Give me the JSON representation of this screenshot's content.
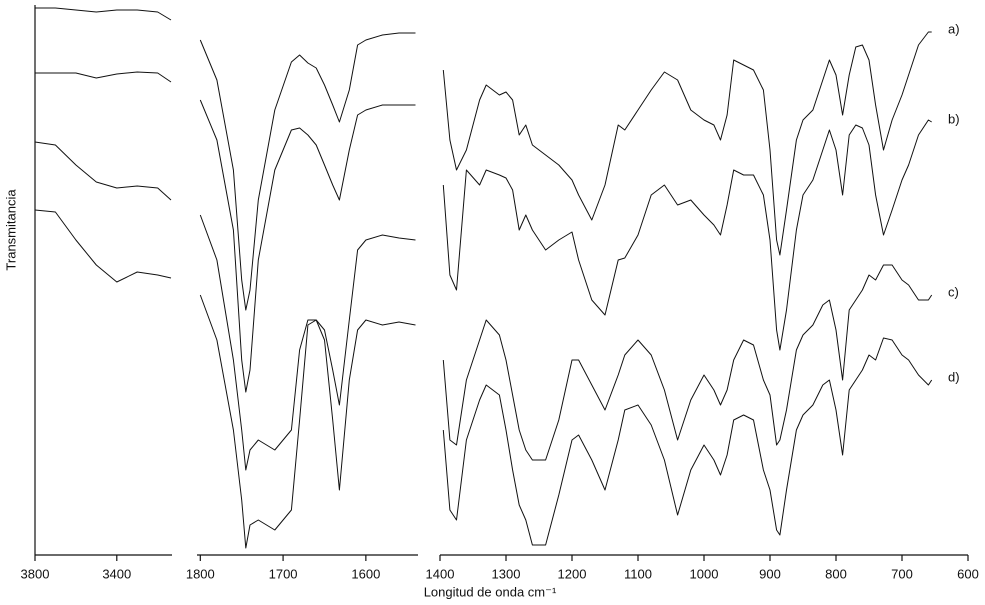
{
  "chart_data": [
    {
      "type": "line",
      "ylabel": "Transmitancia",
      "x": [
        3800,
        3700,
        3600,
        3500,
        3400,
        3300,
        3200,
        3135
      ],
      "xlim": [
        3800,
        3130
      ],
      "xticks": [
        3800,
        3400
      ],
      "ylim": [
        0,
        550
      ],
      "series": [
        {
          "color": "#111111",
          "values": [
            547,
            547,
            545,
            543,
            545,
            545,
            543,
            535
          ]
        },
        {
          "color": "#111111",
          "values": [
            482,
            482,
            482,
            477,
            481,
            483,
            482,
            473
          ]
        },
        {
          "color": "#111111",
          "values": [
            413,
            410,
            390,
            373,
            367,
            369,
            367,
            355
          ]
        },
        {
          "color": "#111111",
          "values": [
            345,
            343,
            315,
            290,
            273,
            283,
            280,
            277
          ]
        }
      ]
    },
    {
      "type": "line",
      "x": [
        1800,
        1780,
        1760,
        1750,
        1745,
        1740,
        1730,
        1710,
        1690,
        1680,
        1670,
        1660,
        1650,
        1640,
        1632,
        1620,
        1610,
        1600,
        1580,
        1560,
        1540
      ],
      "xlim": [
        1804,
        1537
      ],
      "xticks": [
        1800,
        1700,
        1600
      ],
      "ylim": [
        0,
        550
      ],
      "series": [
        {
          "color": "#111111",
          "values": [
            515,
            475,
            385,
            275,
            245,
            265,
            355,
            445,
            493,
            500,
            492,
            487,
            470,
            450,
            433,
            465,
            510,
            515,
            520,
            522,
            522
          ]
        },
        {
          "color": "#111111",
          "values": [
            455,
            415,
            325,
            195,
            163,
            185,
            295,
            385,
            425,
            427,
            420,
            410,
            390,
            370,
            355,
            405,
            440,
            445,
            450,
            450,
            450
          ]
        },
        {
          "color": "#111111",
          "values": [
            340,
            295,
            195,
            125,
            85,
            105,
            115,
            105,
            125,
            205,
            235,
            235,
            225,
            185,
            150,
            235,
            305,
            315,
            320,
            317,
            315
          ]
        },
        {
          "color": "#111111",
          "values": [
            260,
            215,
            125,
            55,
            7,
            30,
            35,
            25,
            45,
            135,
            230,
            235,
            215,
            135,
            65,
            175,
            225,
            235,
            230,
            233,
            230
          ]
        }
      ]
    },
    {
      "type": "line",
      "xlabel": "Longitud de onda cm⁻¹",
      "x": [
        1395,
        1385,
        1375,
        1360,
        1340,
        1330,
        1310,
        1300,
        1290,
        1280,
        1270,
        1260,
        1240,
        1220,
        1200,
        1190,
        1170,
        1150,
        1130,
        1120,
        1100,
        1080,
        1060,
        1040,
        1020,
        1000,
        985,
        975,
        965,
        955,
        940,
        925,
        910,
        900,
        890,
        885,
        875,
        860,
        850,
        835,
        820,
        810,
        800,
        790,
        780,
        770,
        760,
        750,
        740,
        728,
        715,
        700,
        690,
        675,
        660,
        655
      ],
      "xlim": [
        1400,
        600
      ],
      "xticks": [
        1400,
        1300,
        1200,
        1100,
        1000,
        900,
        800,
        700,
        600
      ],
      "ylim": [
        0,
        550
      ],
      "series": [
        {
          "name": "a)",
          "color": "#111111",
          "values": [
            485,
            415,
            385,
            405,
            455,
            470,
            460,
            463,
            455,
            420,
            430,
            410,
            400,
            390,
            375,
            360,
            335,
            370,
            430,
            425,
            445,
            465,
            483,
            475,
            445,
            435,
            430,
            415,
            440,
            495,
            490,
            485,
            465,
            405,
            315,
            300,
            345,
            415,
            435,
            445,
            475,
            495,
            480,
            440,
            480,
            508,
            510,
            495,
            450,
            405,
            435,
            460,
            480,
            510,
            523,
            523
          ]
        },
        {
          "name": "b)",
          "color": "#111111",
          "values": [
            370,
            280,
            265,
            385,
            370,
            385,
            380,
            377,
            365,
            325,
            340,
            325,
            305,
            315,
            323,
            295,
            255,
            240,
            295,
            297,
            320,
            360,
            370,
            350,
            355,
            340,
            330,
            320,
            350,
            385,
            380,
            380,
            360,
            315,
            225,
            205,
            245,
            325,
            360,
            375,
            405,
            425,
            405,
            360,
            420,
            430,
            427,
            410,
            360,
            320,
            345,
            375,
            390,
            420,
            435,
            433
          ]
        },
        {
          "name": "c)",
          "color": "#111111",
          "values": [
            195,
            115,
            110,
            175,
            215,
            235,
            220,
            195,
            160,
            125,
            105,
            95,
            95,
            135,
            195,
            195,
            170,
            145,
            180,
            200,
            215,
            200,
            165,
            115,
            155,
            180,
            165,
            150,
            165,
            195,
            215,
            210,
            175,
            160,
            110,
            115,
            145,
            205,
            220,
            230,
            250,
            255,
            225,
            175,
            245,
            255,
            265,
            280,
            275,
            290,
            290,
            275,
            270,
            255,
            255,
            260
          ]
        },
        {
          "name": "d)",
          "color": "#111111",
          "values": [
            125,
            45,
            35,
            115,
            155,
            170,
            160,
            125,
            85,
            50,
            35,
            10,
            10,
            60,
            115,
            120,
            95,
            65,
            115,
            145,
            150,
            130,
            95,
            40,
            85,
            110,
            95,
            80,
            100,
            135,
            140,
            135,
            85,
            65,
            25,
            20,
            65,
            125,
            140,
            150,
            170,
            175,
            145,
            100,
            165,
            175,
            185,
            200,
            195,
            217,
            215,
            200,
            195,
            180,
            170,
            175
          ]
        }
      ]
    }
  ]
}
